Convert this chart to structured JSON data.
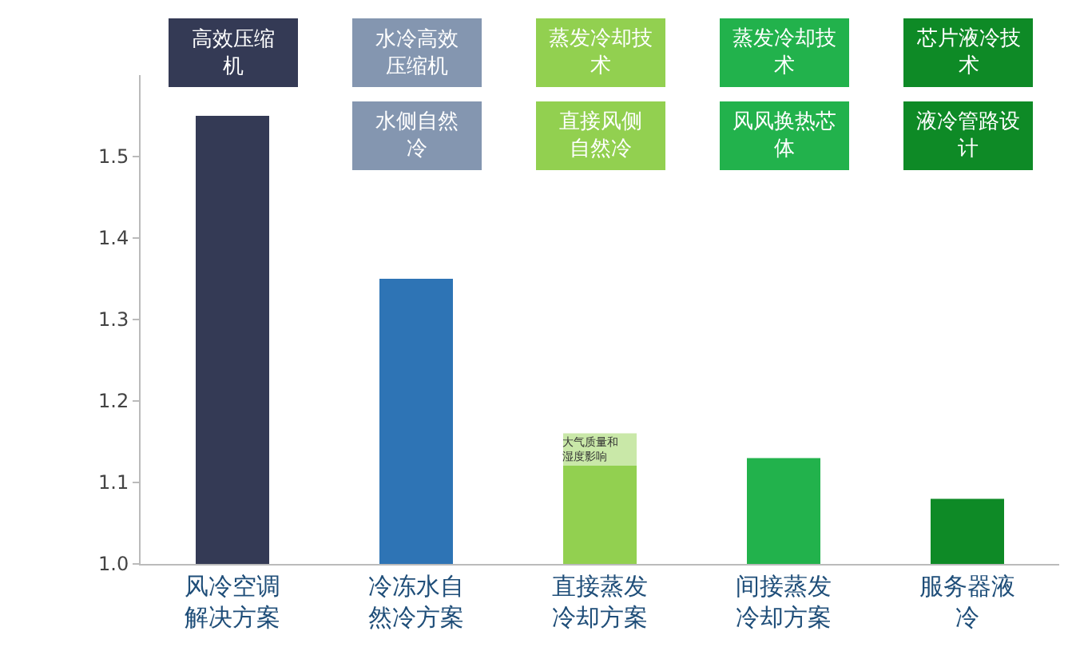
{
  "chart_data": {
    "type": "bar",
    "categories": [
      "风冷空调解决方案",
      "冷冻水自然冷方案",
      "直接蒸发冷却方案",
      "间接蒸发冷却方案",
      "服务器液冷"
    ],
    "values": [
      1.55,
      1.35,
      1.16,
      1.13,
      1.08
    ],
    "colors": [
      "#343a55",
      "#2e74b5",
      "#92d050",
      "#22b24c",
      "#0e8a26"
    ],
    "ylim": [
      1.0,
      1.6
    ],
    "yticks": [
      {
        "value": 1.0,
        "label": "1.0"
      },
      1.1,
      1.2,
      1.3,
      1.4,
      1.5
    ],
    "annotations": [
      "高效压缩机",
      "水冷高效压缩机",
      "水侧自然冷",
      "蒸发冷却技术",
      "直接风侧自然冷",
      "蒸发冷却技术",
      "风风换热芯体",
      "芯片液冷技术",
      "液冷管路设计",
      "大气质量和湿度影响"
    ]
  }
}
